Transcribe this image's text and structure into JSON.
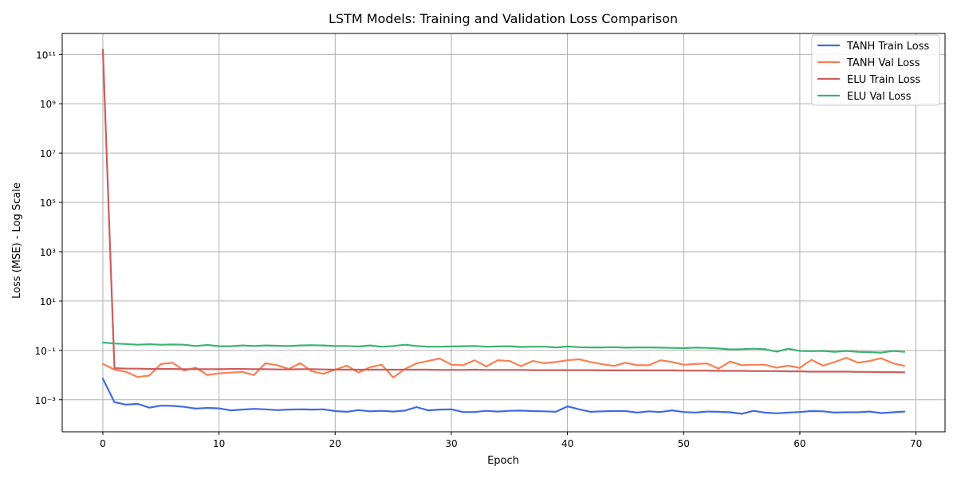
{
  "chart_data": {
    "type": "line",
    "title": "LSTM Models: Training and Validation Loss Comparison",
    "xlabel": "Epoch",
    "ylabel": "Loss (MSE) - Log Scale",
    "yscale": "log",
    "xlim": [
      -3.5,
      72.5
    ],
    "ylim_log10": [
      -4.3,
      11.85
    ],
    "grid": true,
    "legend_position": "top-right",
    "x_ticks": [
      0,
      10,
      20,
      30,
      40,
      50,
      60,
      70
    ],
    "y_ticks": [
      {
        "exp": -3,
        "label": "10⁻³"
      },
      {
        "exp": -1,
        "label": "10⁻¹"
      },
      {
        "exp": 1,
        "label": "10¹"
      },
      {
        "exp": 3,
        "label": "10³"
      },
      {
        "exp": 5,
        "label": "10⁵"
      },
      {
        "exp": 7,
        "label": "10⁷"
      },
      {
        "exp": 9,
        "label": "10⁹"
      },
      {
        "exp": 11,
        "label": "10¹¹"
      }
    ],
    "series": [
      {
        "name": "TANH Train Loss",
        "color": "#4169E1",
        "log10_values": [
          -2.15,
          -3.1,
          -3.2,
          -3.17,
          -3.32,
          -3.24,
          -3.25,
          -3.29,
          -3.36,
          -3.33,
          -3.35,
          -3.43,
          -3.4,
          -3.37,
          -3.39,
          -3.42,
          -3.4,
          -3.39,
          -3.4,
          -3.39,
          -3.46,
          -3.49,
          -3.42,
          -3.47,
          -3.45,
          -3.48,
          -3.44,
          -3.3,
          -3.43,
          -3.4,
          -3.39,
          -3.5,
          -3.5,
          -3.45,
          -3.48,
          -3.45,
          -3.44,
          -3.46,
          -3.47,
          -3.49,
          -3.27,
          -3.39,
          -3.49,
          -3.47,
          -3.46,
          -3.46,
          -3.52,
          -3.47,
          -3.5,
          -3.43,
          -3.5,
          -3.52,
          -3.48,
          -3.49,
          -3.51,
          -3.57,
          -3.45,
          -3.52,
          -3.55,
          -3.52,
          -3.5,
          -3.46,
          -3.47,
          -3.52,
          -3.51,
          -3.51,
          -3.48,
          -3.54,
          -3.51,
          -3.48
        ]
      },
      {
        "name": "TANH Val Loss",
        "color": "#FA7F52",
        "log10_values": [
          -1.55,
          -1.78,
          -1.87,
          -2.08,
          -2.02,
          -1.55,
          -1.5,
          -1.82,
          -1.7,
          -2.0,
          -1.93,
          -1.9,
          -1.87,
          -2.0,
          -1.52,
          -1.6,
          -1.75,
          -1.52,
          -1.85,
          -1.95,
          -1.78,
          -1.62,
          -1.9,
          -1.68,
          -1.58,
          -2.1,
          -1.75,
          -1.53,
          -1.43,
          -1.33,
          -1.58,
          -1.6,
          -1.4,
          -1.65,
          -1.4,
          -1.43,
          -1.64,
          -1.43,
          -1.52,
          -1.47,
          -1.4,
          -1.36,
          -1.47,
          -1.56,
          -1.63,
          -1.5,
          -1.6,
          -1.6,
          -1.4,
          -1.47,
          -1.58,
          -1.55,
          -1.53,
          -1.74,
          -1.45,
          -1.6,
          -1.58,
          -1.58,
          -1.7,
          -1.62,
          -1.71,
          -1.38,
          -1.62,
          -1.47,
          -1.3,
          -1.5,
          -1.43,
          -1.32,
          -1.52,
          -1.63
        ]
      },
      {
        "name": "ELU Train Loss",
        "color": "#CD5C5C",
        "log10_values": [
          11.2,
          -1.72,
          -1.74,
          -1.74,
          -1.75,
          -1.75,
          -1.75,
          -1.76,
          -1.76,
          -1.76,
          -1.76,
          -1.75,
          -1.75,
          -1.76,
          -1.76,
          -1.77,
          -1.77,
          -1.76,
          -1.76,
          -1.77,
          -1.78,
          -1.78,
          -1.78,
          -1.78,
          -1.78,
          -1.78,
          -1.78,
          -1.78,
          -1.78,
          -1.79,
          -1.79,
          -1.79,
          -1.78,
          -1.79,
          -1.79,
          -1.79,
          -1.79,
          -1.8,
          -1.8,
          -1.8,
          -1.8,
          -1.8,
          -1.8,
          -1.81,
          -1.81,
          -1.81,
          -1.81,
          -1.81,
          -1.81,
          -1.81,
          -1.82,
          -1.82,
          -1.82,
          -1.83,
          -1.83,
          -1.83,
          -1.84,
          -1.84,
          -1.84,
          -1.85,
          -1.85,
          -1.86,
          -1.86,
          -1.86,
          -1.86,
          -1.87,
          -1.87,
          -1.88,
          -1.88,
          -1.89
        ]
      },
      {
        "name": "ELU Val Loss",
        "color": "#3CB371",
        "log10_values": [
          -0.68,
          -0.72,
          -0.74,
          -0.77,
          -0.75,
          -0.77,
          -0.76,
          -0.77,
          -0.82,
          -0.78,
          -0.83,
          -0.83,
          -0.8,
          -0.82,
          -0.8,
          -0.81,
          -0.82,
          -0.8,
          -0.79,
          -0.8,
          -0.82,
          -0.82,
          -0.84,
          -0.8,
          -0.85,
          -0.82,
          -0.77,
          -0.82,
          -0.85,
          -0.85,
          -0.84,
          -0.83,
          -0.82,
          -0.85,
          -0.84,
          -0.83,
          -0.86,
          -0.85,
          -0.85,
          -0.88,
          -0.84,
          -0.87,
          -0.88,
          -0.88,
          -0.87,
          -0.89,
          -0.88,
          -0.88,
          -0.89,
          -0.9,
          -0.91,
          -0.89,
          -0.9,
          -0.92,
          -0.96,
          -0.95,
          -0.93,
          -0.95,
          -1.05,
          -0.93,
          -1.02,
          -1.03,
          -1.02,
          -1.06,
          -1.02,
          -1.06,
          -1.07,
          -1.09,
          -1.02,
          -1.06
        ]
      }
    ]
  }
}
